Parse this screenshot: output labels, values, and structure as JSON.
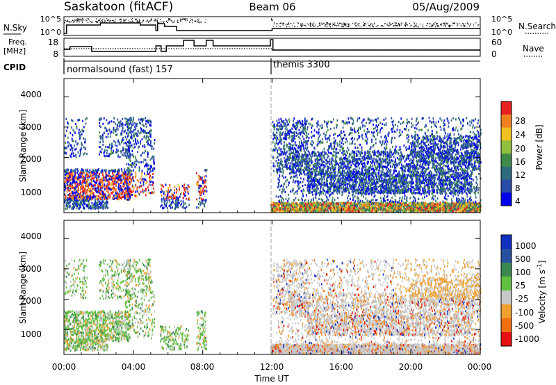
{
  "header": {
    "station": "Saskatoon (fitACF)",
    "beam": "Beam 06",
    "date": "05/Aug/2009"
  },
  "nsky_panel": {
    "left_label": "N.Sky",
    "right_label": "N.Search",
    "left_ticks": [
      "10^5",
      "10^0"
    ],
    "right_ticks": [
      "10^5",
      "10^0"
    ]
  },
  "freq_panel": {
    "left_label_line1": "Freq.",
    "left_label_line2": "[MHz]",
    "right_label": "Nave",
    "left_ticks": [
      "18",
      "8"
    ],
    "right_ticks": [
      "60",
      "0"
    ]
  },
  "cpid_panel": {
    "label": "CPID",
    "modes": [
      {
        "name": "normalsound (fast) 157",
        "start_hour": 0
      },
      {
        "name": "themis 3300",
        "start_hour": 12
      }
    ]
  },
  "x_axis": {
    "label": "Time UT",
    "tick_labels": [
      "00:00",
      "04:00",
      "08:00",
      "12:00",
      "16:00",
      "20:00",
      "00:00"
    ],
    "range_hours": [
      0,
      24
    ]
  },
  "power_panel": {
    "ylabel": "Slant Range [km]",
    "yticks": [
      "4000",
      "3000",
      "2000",
      "1000"
    ],
    "colorbar_label": "Power [dB]",
    "colorbar_ticks": [
      "28",
      "24",
      "20",
      "16",
      "12",
      "8",
      "4"
    ],
    "colors": [
      "#0000ee",
      "#2a4aa8",
      "#2e6a80",
      "#3f8a4a",
      "#8fbf3c",
      "#f0c020",
      "#f08020",
      "#e82020"
    ]
  },
  "velocity_panel": {
    "ylabel": "Slant Range [km]",
    "yticks": [
      "4000",
      "3000",
      "2000",
      "1000"
    ],
    "colorbar_label": "Velocity [m s",
    "colorbar_label_sup": "-1",
    "colorbar_label_end": "]",
    "colorbar_ticks": [
      "1000",
      "500",
      "100",
      "25",
      "-25",
      "-100",
      "-500",
      "-1000"
    ],
    "colors": [
      "#1030c0",
      "#2850a0",
      "#3a8a50",
      "#60c040",
      "#c8c8c8",
      "#f0a030",
      "#f07010",
      "#e81010"
    ]
  },
  "chart_data": {
    "type": "heatmap",
    "time_range_hours": [
      0,
      24
    ],
    "range_km": [
      180,
      4600
    ],
    "power_db_range": [
      0,
      30
    ],
    "velocity_range_ms": [
      -1000,
      1000
    ],
    "data_gap_hours": [
      [
        8.2,
        11.9
      ]
    ],
    "cpid_change_hours": [
      12
    ]
  }
}
